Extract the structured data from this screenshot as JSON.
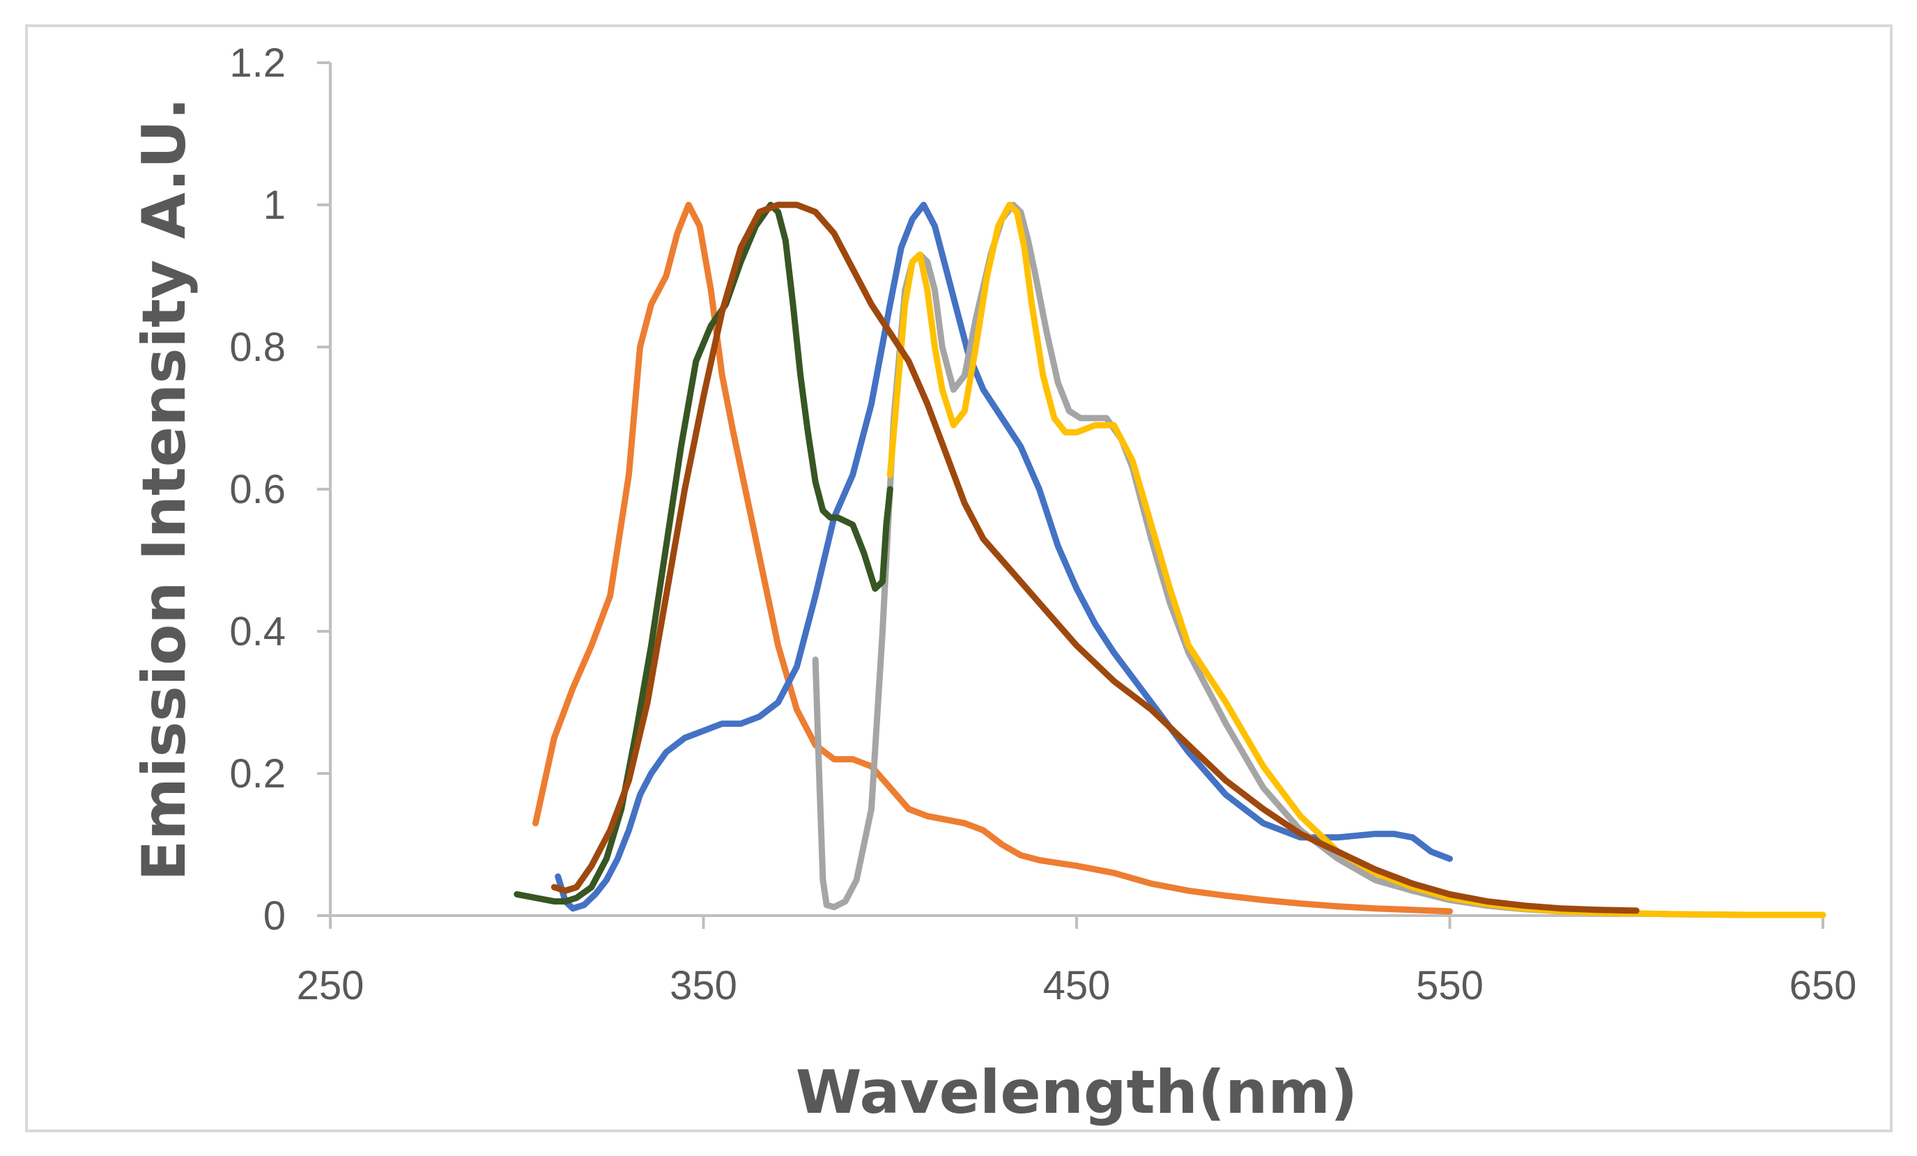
{
  "chart_data": {
    "type": "line",
    "title": "",
    "xlabel": "Wavelength(nm)",
    "ylabel": "Emission Intensity A.U.",
    "xlim": [
      250,
      650
    ],
    "ylim": [
      0,
      1.2
    ],
    "xticks": [
      250,
      350,
      450,
      550,
      650
    ],
    "xtick_labels": [
      "250",
      "350",
      "450",
      "550",
      "650"
    ],
    "yticks": [
      0,
      0.2,
      0.4,
      0.6,
      0.8,
      1,
      1.2
    ],
    "ytick_labels": [
      "0",
      "0.2",
      "0.4",
      "0.6",
      "0.8",
      "1",
      "1.2"
    ],
    "grid": false,
    "legend": "none",
    "series": [
      {
        "name": "orange",
        "color": "#ED7D31",
        "x": [
          305,
          310,
          315,
          320,
          325,
          330,
          333,
          336,
          340,
          343,
          346,
          349,
          352,
          355,
          358,
          362,
          366,
          370,
          375,
          380,
          385,
          390,
          395,
          400,
          405,
          410,
          415,
          420,
          425,
          430,
          435,
          440,
          450,
          460,
          470,
          480,
          490,
          500,
          510,
          520,
          530,
          540,
          550
        ],
        "y": [
          0.13,
          0.25,
          0.32,
          0.38,
          0.45,
          0.62,
          0.8,
          0.86,
          0.9,
          0.96,
          1.0,
          0.97,
          0.88,
          0.76,
          0.68,
          0.58,
          0.48,
          0.38,
          0.29,
          0.24,
          0.22,
          0.22,
          0.21,
          0.18,
          0.15,
          0.14,
          0.135,
          0.13,
          0.12,
          0.1,
          0.085,
          0.078,
          0.07,
          0.06,
          0.045,
          0.035,
          0.028,
          0.022,
          0.017,
          0.013,
          0.01,
          0.008,
          0.006
        ]
      },
      {
        "name": "blue",
        "color": "#4472C4",
        "x": [
          311,
          313,
          315,
          318,
          321,
          324,
          327,
          330,
          333,
          336,
          340,
          345,
          350,
          355,
          360,
          365,
          370,
          375,
          380,
          385,
          390,
          395,
          400,
          403,
          406,
          409,
          412,
          415,
          418,
          421,
          425,
          430,
          435,
          440,
          445,
          450,
          455,
          460,
          470,
          480,
          490,
          500,
          510,
          520,
          530,
          535,
          540,
          545,
          550
        ],
        "y": [
          0.055,
          0.02,
          0.01,
          0.015,
          0.03,
          0.05,
          0.08,
          0.12,
          0.17,
          0.2,
          0.23,
          0.25,
          0.26,
          0.27,
          0.27,
          0.28,
          0.3,
          0.35,
          0.45,
          0.56,
          0.62,
          0.72,
          0.86,
          0.94,
          0.98,
          1.0,
          0.97,
          0.91,
          0.85,
          0.79,
          0.74,
          0.7,
          0.66,
          0.6,
          0.52,
          0.46,
          0.41,
          0.37,
          0.3,
          0.23,
          0.17,
          0.13,
          0.11,
          0.11,
          0.115,
          0.115,
          0.11,
          0.09,
          0.08
        ]
      },
      {
        "name": "gray",
        "color": "#A5A5A5",
        "x": [
          380,
          381,
          382,
          383,
          385,
          388,
          391,
          395,
          398,
          401,
          404,
          406,
          408,
          410,
          412,
          414,
          417,
          420,
          423,
          427,
          430,
          433,
          435,
          437,
          439,
          442,
          445,
          448,
          451,
          454,
          458,
          462,
          465,
          470,
          475,
          480,
          490,
          500,
          510,
          520,
          530,
          540,
          550,
          560,
          570,
          580,
          590,
          600,
          610,
          620,
          630,
          640,
          650
        ],
        "y": [
          0.36,
          0.2,
          0.05,
          0.015,
          0.012,
          0.02,
          0.05,
          0.15,
          0.4,
          0.7,
          0.88,
          0.92,
          0.93,
          0.92,
          0.88,
          0.8,
          0.74,
          0.76,
          0.84,
          0.93,
          0.98,
          1.0,
          0.99,
          0.95,
          0.9,
          0.82,
          0.75,
          0.71,
          0.7,
          0.7,
          0.7,
          0.67,
          0.63,
          0.53,
          0.44,
          0.37,
          0.27,
          0.18,
          0.12,
          0.08,
          0.05,
          0.035,
          0.022,
          0.014,
          0.009,
          0.006,
          0.004,
          0.003,
          0.002,
          0.0015,
          0.001,
          0.001,
          0.001
        ]
      },
      {
        "name": "yellow",
        "color": "#FFC000",
        "x": [
          400,
          402,
          404,
          406,
          408,
          410,
          412,
          414,
          417,
          420,
          423,
          426,
          429,
          432,
          434,
          436,
          438,
          441,
          444,
          447,
          450,
          455,
          460,
          465,
          470,
          475,
          480,
          490,
          500,
          510,
          520,
          530,
          540,
          550,
          560,
          570,
          580,
          590,
          600,
          610,
          620,
          630,
          640,
          650
        ],
        "y": [
          0.62,
          0.74,
          0.86,
          0.92,
          0.93,
          0.88,
          0.8,
          0.74,
          0.69,
          0.71,
          0.8,
          0.9,
          0.97,
          1.0,
          0.99,
          0.94,
          0.86,
          0.76,
          0.7,
          0.68,
          0.68,
          0.69,
          0.69,
          0.64,
          0.55,
          0.46,
          0.38,
          0.3,
          0.21,
          0.14,
          0.09,
          0.06,
          0.04,
          0.025,
          0.016,
          0.01,
          0.006,
          0.004,
          0.003,
          0.002,
          0.0015,
          0.001,
          0.001,
          0.001
        ]
      },
      {
        "name": "dark-green",
        "color": "#375623",
        "x": [
          300,
          305,
          310,
          313,
          316,
          320,
          324,
          328,
          332,
          336,
          340,
          344,
          348,
          352,
          356,
          360,
          364,
          368,
          370,
          372,
          374,
          376,
          378,
          380,
          382,
          384,
          386,
          390,
          393,
          396,
          398,
          399,
          400
        ],
        "y": [
          0.03,
          0.025,
          0.02,
          0.02,
          0.025,
          0.04,
          0.08,
          0.15,
          0.26,
          0.38,
          0.52,
          0.66,
          0.78,
          0.83,
          0.86,
          0.92,
          0.97,
          1.0,
          0.99,
          0.95,
          0.86,
          0.76,
          0.68,
          0.61,
          0.57,
          0.56,
          0.56,
          0.55,
          0.51,
          0.46,
          0.47,
          0.55,
          0.6
        ]
      },
      {
        "name": "brown",
        "color": "#9E480E",
        "x": [
          310,
          313,
          316,
          320,
          325,
          330,
          335,
          340,
          345,
          350,
          355,
          360,
          365,
          370,
          375,
          380,
          385,
          390,
          395,
          400,
          405,
          410,
          415,
          420,
          425,
          430,
          435,
          440,
          445,
          450,
          460,
          470,
          480,
          490,
          500,
          510,
          520,
          530,
          540,
          550,
          560,
          570,
          580,
          590,
          600
        ],
        "y": [
          0.04,
          0.035,
          0.04,
          0.07,
          0.12,
          0.19,
          0.3,
          0.45,
          0.6,
          0.73,
          0.85,
          0.94,
          0.99,
          1.0,
          1.0,
          0.99,
          0.96,
          0.91,
          0.86,
          0.82,
          0.78,
          0.72,
          0.65,
          0.58,
          0.53,
          0.5,
          0.47,
          0.44,
          0.41,
          0.38,
          0.33,
          0.29,
          0.24,
          0.19,
          0.15,
          0.115,
          0.09,
          0.065,
          0.045,
          0.03,
          0.02,
          0.014,
          0.01,
          0.008,
          0.007
        ]
      }
    ]
  }
}
